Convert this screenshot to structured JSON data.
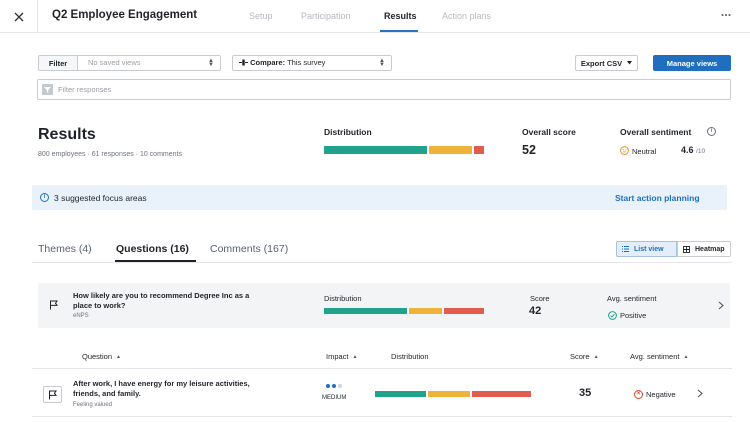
{
  "header": {
    "title": "Q2 Employee Engagement",
    "tabs": [
      {
        "label": "Setup"
      },
      {
        "label": "Participation"
      },
      {
        "label": "Results"
      },
      {
        "label": "Action plans"
      }
    ],
    "active_tab": "Results"
  },
  "toolbar": {
    "filter_label": "Filter",
    "saved_views_placeholder": "No saved views",
    "compare_prefix": "Compare:",
    "compare_value": "This survey",
    "export_label": "Export CSV",
    "manage_label": "Manage views",
    "filter_responses_placeholder": "Filter responses"
  },
  "summary": {
    "title": "Results",
    "subtitle": "800 employees · 61 responses · 10 comments",
    "distribution_label": "Distribution",
    "distribution": [
      {
        "value": 0.65,
        "color": "#21a38b"
      },
      {
        "value": 0.27,
        "color": "#efb23a"
      },
      {
        "value": 0.06,
        "color": "#e25d4f"
      }
    ],
    "overall_score_label": "Overall score",
    "overall_score": "52",
    "overall_sentiment_label": "Overall sentiment",
    "sentiment_label": "Neutral",
    "sentiment_score": "4.6",
    "sentiment_scale": "/10"
  },
  "banner": {
    "text": "3 suggested focus areas",
    "link": "Start action planning"
  },
  "subtabs": [
    {
      "label": "Themes (4)"
    },
    {
      "label": "Questions (16)"
    },
    {
      "label": "Comments (167)"
    }
  ],
  "view_toggle": {
    "list_label": "List view",
    "heatmap_label": "Heatmap"
  },
  "enps_card": {
    "question_line1": "How likely are you to recommend Degree Inc as a",
    "question_line2": "place to work?",
    "category": "eNPS",
    "distribution_label": "Distribution",
    "distribution": [
      {
        "value": 0.52,
        "color": "#21a38b"
      },
      {
        "value": 0.21,
        "color": "#efb23a"
      },
      {
        "value": 0.25,
        "color": "#e25d4f"
      }
    ],
    "score_label": "Score",
    "score": "42",
    "sentiment_label": "Avg. sentiment",
    "sentiment": "Positive"
  },
  "table": {
    "headers": {
      "question": "Question",
      "impact": "Impact",
      "distribution": "Distribution",
      "score": "Score",
      "sentiment": "Avg. sentiment"
    },
    "rows": [
      {
        "question_line1": "After work, I have energy for my leisure activities,",
        "question_line2": "friends, and family.",
        "category": "Feeling valued",
        "impact": "MEDIUM",
        "impact_level": 2,
        "distribution": [
          {
            "value": 0.33,
            "color": "#21a38b"
          },
          {
            "value": 0.27,
            "color": "#efb23a"
          },
          {
            "value": 0.38,
            "color": "#e25d4f"
          }
        ],
        "score": "35",
        "sentiment": "Negative"
      }
    ]
  },
  "colors": {
    "accent": "#1f6fbe",
    "positive": "#21a38b",
    "neutral": "#efb23a",
    "negative": "#e25d4f"
  }
}
